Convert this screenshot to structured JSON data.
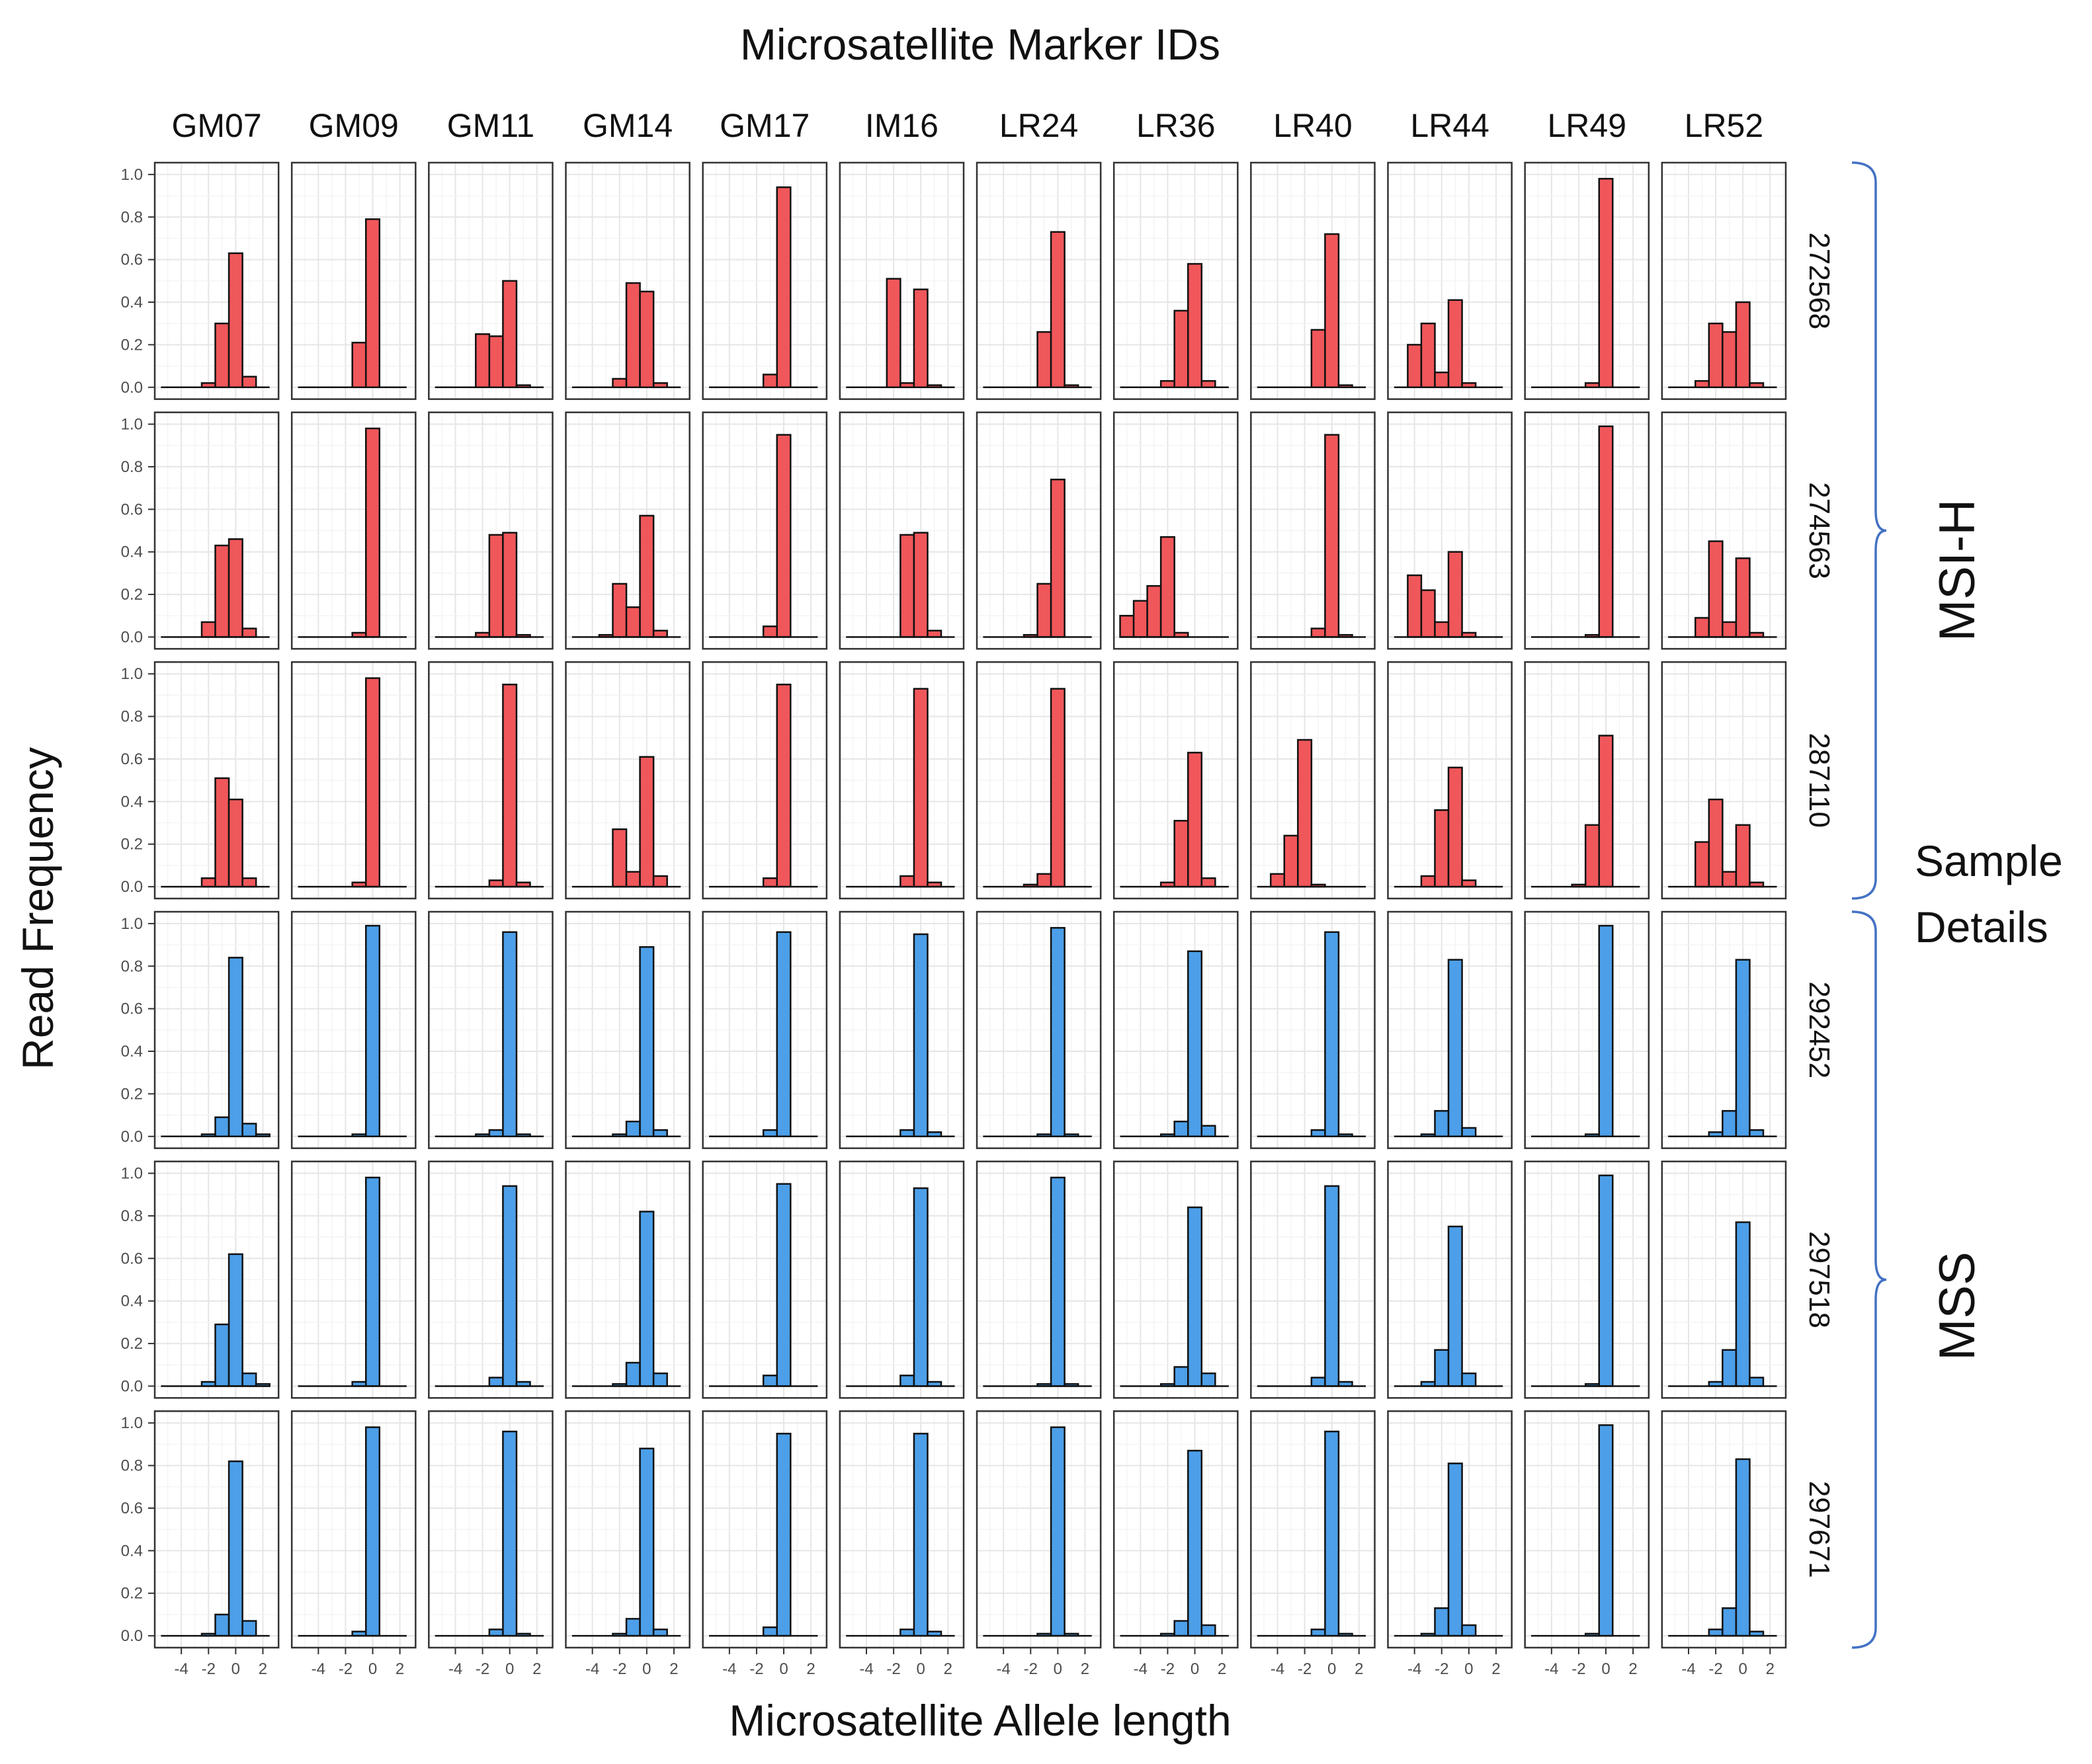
{
  "chart_data": {
    "type": "bar",
    "title": "Microsatellite Marker IDs",
    "xlabel": "Microsatellite Allele length",
    "ylabel": "Read Frequency",
    "bins": [
      -5,
      -4,
      -3,
      -2,
      -1,
      0,
      1,
      2
    ],
    "xticks": [
      "-4",
      "-2",
      "0",
      "2"
    ],
    "yticks": [
      "0.0",
      "0.2",
      "0.4",
      "0.6",
      "0.8",
      "1.0"
    ],
    "ylim": [
      0,
      1.0
    ],
    "markers": [
      "GM07",
      "GM09",
      "GM11",
      "GM14",
      "GM17",
      "IM16",
      "LR24",
      "LR36",
      "LR40",
      "LR44",
      "LR49",
      "LR52"
    ],
    "samples": [
      "272568",
      "274563",
      "287110",
      "292452",
      "297518",
      "297671"
    ],
    "groups": [
      {
        "label": "MSI-H",
        "samples": [
          "272568",
          "274563",
          "287110"
        ],
        "color": "#F0575A"
      },
      {
        "label": "MSS",
        "samples": [
          "292452",
          "297518",
          "297671"
        ],
        "color": "#4C9FE8"
      }
    ],
    "side_label": [
      "Sample",
      "Details"
    ],
    "values": [
      [
        [
          0,
          0,
          0,
          0.02,
          0.3,
          0.63,
          0.05,
          0
        ],
        [
          0,
          0,
          0,
          0,
          0.21,
          0.79,
          0,
          0
        ],
        [
          0,
          0,
          0,
          0.25,
          0.24,
          0.5,
          0.01,
          0
        ],
        [
          0,
          0,
          0,
          0.04,
          0.49,
          0.45,
          0.02,
          0
        ],
        [
          0,
          0,
          0,
          0,
          0.06,
          0.94,
          0,
          0
        ],
        [
          0,
          0,
          0,
          0.51,
          0.02,
          0.46,
          0.01,
          0
        ],
        [
          0,
          0,
          0,
          0,
          0.26,
          0.73,
          0.01,
          0
        ],
        [
          0,
          0,
          0,
          0.03,
          0.36,
          0.58,
          0.03,
          0
        ],
        [
          0,
          0,
          0,
          0,
          0.27,
          0.72,
          0.01,
          0
        ],
        [
          0,
          0.2,
          0.3,
          0.07,
          0.41,
          0.02,
          0,
          0
        ],
        [
          0,
          0,
          0,
          0,
          0.02,
          0.98,
          0,
          0
        ],
        [
          0,
          0,
          0.03,
          0.3,
          0.26,
          0.4,
          0.02,
          0
        ]
      ],
      [
        [
          0,
          0,
          0,
          0.07,
          0.43,
          0.46,
          0.04,
          0
        ],
        [
          0,
          0,
          0,
          0,
          0.02,
          0.98,
          0,
          0
        ],
        [
          0,
          0,
          0,
          0.02,
          0.48,
          0.49,
          0.01,
          0
        ],
        [
          0,
          0,
          0.01,
          0.25,
          0.14,
          0.57,
          0.03,
          0
        ],
        [
          0,
          0,
          0,
          0,
          0.05,
          0.95,
          0,
          0
        ],
        [
          0,
          0,
          0,
          0,
          0.48,
          0.49,
          0.03,
          0
        ],
        [
          0,
          0,
          0,
          0.01,
          0.25,
          0.74,
          0,
          0
        ],
        [
          0.1,
          0.17,
          0.24,
          0.47,
          0.02,
          0,
          0,
          0
        ],
        [
          0,
          0,
          0,
          0,
          0.04,
          0.95,
          0.01,
          0
        ],
        [
          0,
          0.29,
          0.22,
          0.07,
          0.4,
          0.02,
          0,
          0
        ],
        [
          0,
          0,
          0,
          0,
          0.01,
          0.99,
          0,
          0
        ],
        [
          0,
          0,
          0.09,
          0.45,
          0.07,
          0.37,
          0.02,
          0
        ]
      ],
      [
        [
          0,
          0,
          0,
          0.04,
          0.51,
          0.41,
          0.04,
          0
        ],
        [
          0,
          0,
          0,
          0,
          0.02,
          0.98,
          0,
          0
        ],
        [
          0,
          0,
          0,
          0,
          0.03,
          0.95,
          0.02,
          0
        ],
        [
          0,
          0,
          0,
          0.27,
          0.07,
          0.61,
          0.05,
          0
        ],
        [
          0,
          0,
          0,
          0,
          0.04,
          0.95,
          0,
          0
        ],
        [
          0,
          0,
          0,
          0,
          0.05,
          0.93,
          0.02,
          0
        ],
        [
          0,
          0,
          0,
          0.01,
          0.06,
          0.93,
          0,
          0
        ],
        [
          0,
          0,
          0,
          0.02,
          0.31,
          0.63,
          0.04,
          0
        ],
        [
          0,
          0.06,
          0.24,
          0.69,
          0.01,
          0,
          0,
          0
        ],
        [
          0,
          0,
          0.05,
          0.36,
          0.56,
          0.03,
          0,
          0
        ],
        [
          0,
          0,
          0,
          0.01,
          0.29,
          0.71,
          0,
          0
        ],
        [
          0,
          0,
          0.21,
          0.41,
          0.07,
          0.29,
          0.02,
          0
        ]
      ],
      [
        [
          0,
          0,
          0,
          0.01,
          0.09,
          0.84,
          0.06,
          0.01
        ],
        [
          0,
          0,
          0,
          0,
          0.01,
          0.99,
          0,
          0
        ],
        [
          0,
          0,
          0,
          0.01,
          0.03,
          0.96,
          0.01,
          0
        ],
        [
          0,
          0,
          0,
          0.01,
          0.07,
          0.89,
          0.03,
          0
        ],
        [
          0,
          0,
          0,
          0,
          0.03,
          0.96,
          0,
          0
        ],
        [
          0,
          0,
          0,
          0,
          0.03,
          0.95,
          0.02,
          0
        ],
        [
          0,
          0,
          0,
          0,
          0.01,
          0.98,
          0.01,
          0
        ],
        [
          0,
          0,
          0,
          0.01,
          0.07,
          0.87,
          0.05,
          0
        ],
        [
          0,
          0,
          0,
          0,
          0.03,
          0.96,
          0.01,
          0
        ],
        [
          0,
          0,
          0.01,
          0.12,
          0.83,
          0.04,
          0,
          0
        ],
        [
          0,
          0,
          0,
          0,
          0.01,
          0.99,
          0,
          0
        ],
        [
          0,
          0,
          0,
          0.02,
          0.12,
          0.83,
          0.03,
          0
        ]
      ],
      [
        [
          0,
          0,
          0,
          0.02,
          0.29,
          0.62,
          0.06,
          0.01
        ],
        [
          0,
          0,
          0,
          0,
          0.02,
          0.98,
          0,
          0
        ],
        [
          0,
          0,
          0,
          0,
          0.04,
          0.94,
          0.02,
          0
        ],
        [
          0,
          0,
          0,
          0.01,
          0.11,
          0.82,
          0.06,
          0
        ],
        [
          0,
          0,
          0,
          0,
          0.05,
          0.95,
          0,
          0
        ],
        [
          0,
          0,
          0,
          0,
          0.05,
          0.93,
          0.02,
          0
        ],
        [
          0,
          0,
          0,
          0,
          0.01,
          0.98,
          0.01,
          0
        ],
        [
          0,
          0,
          0,
          0.01,
          0.09,
          0.84,
          0.06,
          0
        ],
        [
          0,
          0,
          0,
          0,
          0.04,
          0.94,
          0.02,
          0
        ],
        [
          0,
          0,
          0.02,
          0.17,
          0.75,
          0.06,
          0,
          0
        ],
        [
          0,
          0,
          0,
          0,
          0.01,
          0.99,
          0,
          0
        ],
        [
          0,
          0,
          0,
          0.02,
          0.17,
          0.77,
          0.04,
          0
        ]
      ],
      [
        [
          0,
          0,
          0,
          0.01,
          0.1,
          0.82,
          0.07,
          0
        ],
        [
          0,
          0,
          0,
          0,
          0.02,
          0.98,
          0,
          0
        ],
        [
          0,
          0,
          0,
          0,
          0.03,
          0.96,
          0.01,
          0
        ],
        [
          0,
          0,
          0,
          0.01,
          0.08,
          0.88,
          0.03,
          0
        ],
        [
          0,
          0,
          0,
          0,
          0.04,
          0.95,
          0,
          0
        ],
        [
          0,
          0,
          0,
          0,
          0.03,
          0.95,
          0.02,
          0
        ],
        [
          0,
          0,
          0,
          0,
          0.01,
          0.98,
          0.01,
          0
        ],
        [
          0,
          0,
          0,
          0.01,
          0.07,
          0.87,
          0.05,
          0
        ],
        [
          0,
          0,
          0,
          0,
          0.03,
          0.96,
          0.01,
          0
        ],
        [
          0,
          0,
          0.01,
          0.13,
          0.81,
          0.05,
          0,
          0
        ],
        [
          0,
          0,
          0,
          0,
          0.01,
          0.99,
          0,
          0
        ],
        [
          0,
          0,
          0,
          0.03,
          0.13,
          0.83,
          0.02,
          0
        ]
      ]
    ]
  }
}
